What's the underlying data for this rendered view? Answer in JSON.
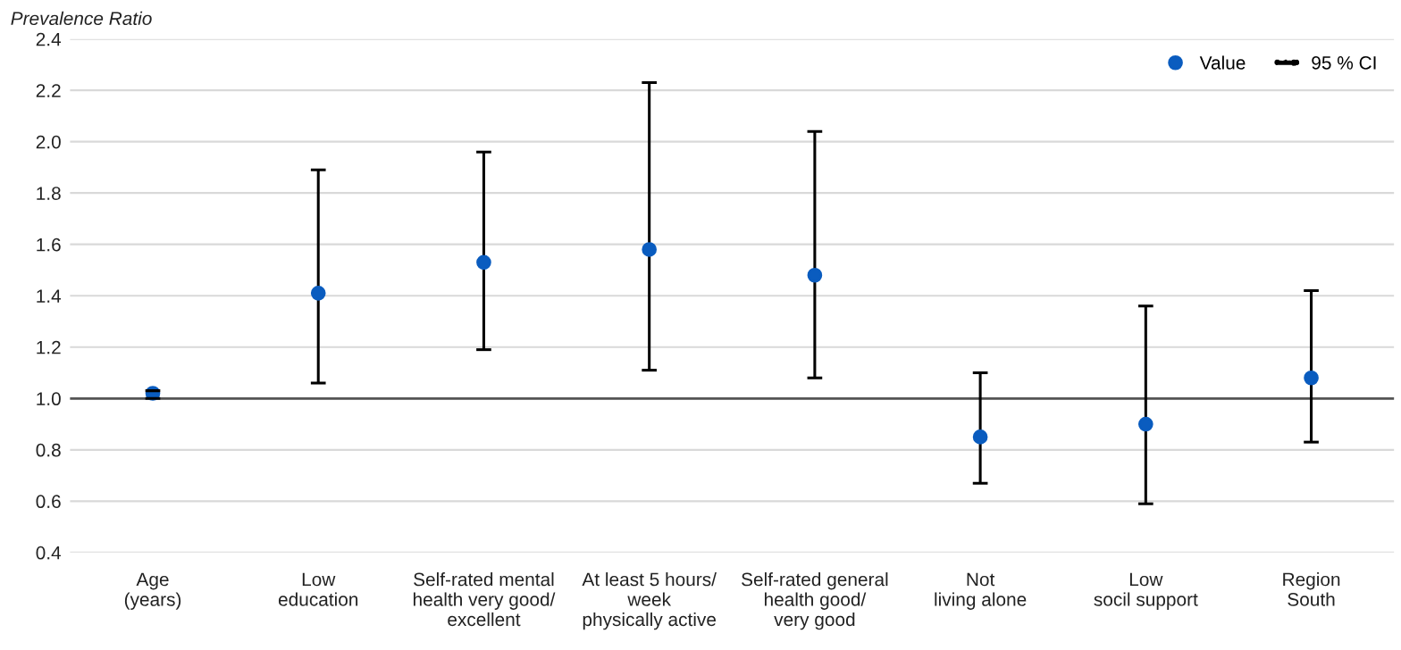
{
  "chart_data": {
    "type": "scatter",
    "ylabel": "Prevalence Ratio",
    "categories": [
      "Age\n(years)",
      "Low\neducation",
      "Self-rated mental\nhealth very good/\nexcellent",
      "At least 5 hours/\nweek\nphysically active",
      "Self-rated general\nhealth good/\nvery good",
      "Not\nliving alone",
      "Low\nsocil support",
      "Region\nSouth"
    ],
    "series": [
      {
        "name": "Value",
        "color": "#0a5cbf",
        "values": [
          1.02,
          1.41,
          1.53,
          1.58,
          1.48,
          0.85,
          0.9,
          1.08
        ],
        "errors": [
          [
            1.0,
            1.03
          ],
          [
            1.06,
            1.89
          ],
          [
            1.19,
            1.96
          ],
          [
            1.11,
            2.23
          ],
          [
            1.08,
            2.04
          ],
          [
            0.67,
            1.1
          ],
          [
            0.59,
            1.36
          ],
          [
            0.83,
            1.42
          ]
        ]
      }
    ],
    "annotations": [
      "95 % CI"
    ],
    "ylim": [
      0.4,
      2.4
    ],
    "yticks": [
      0.4,
      0.6,
      0.8,
      {
        "value": 1,
        "label": "1.0"
      },
      1.2,
      1.4,
      1.6,
      1.8,
      {
        "value": 2,
        "label": "2.0"
      },
      2.2,
      2.4
    ],
    "ref_lines": [
      {
        "axis": "y",
        "value": 1.0,
        "color": "#555555"
      }
    ],
    "grid": "y",
    "legend": "top right",
    "marker": "circle"
  }
}
